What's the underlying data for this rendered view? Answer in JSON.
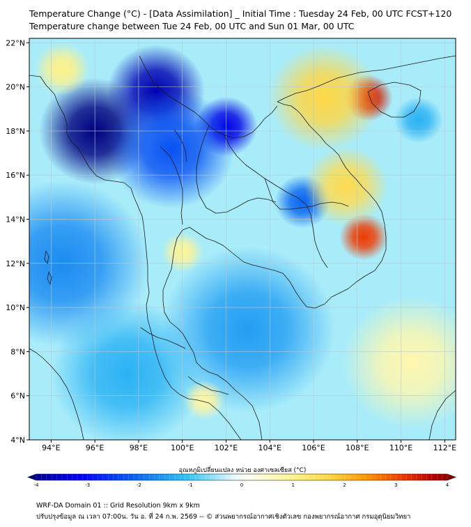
{
  "title": {
    "line1": "Temperature Change (°C) - [Data Assimilation] _ Initial Time : Tuesday 24 Feb, 00 UTC FCST+120",
    "line2": "Temperature change between Tue 24 Feb, 00 UTC and Sun 01 Mar, 00 UTC"
  },
  "map": {
    "lon_range": [
      93,
      112.5
    ],
    "lat_range": [
      4,
      22.2
    ],
    "x_ticks": [
      94,
      96,
      98,
      100,
      102,
      104,
      106,
      108,
      110,
      112
    ],
    "x_tick_labels": [
      "94°E",
      "96°E",
      "98°E",
      "100°E",
      "102°E",
      "104°E",
      "106°E",
      "108°E",
      "110°E",
      "112°E"
    ],
    "y_ticks": [
      4,
      6,
      8,
      10,
      12,
      14,
      16,
      18,
      20,
      22
    ],
    "y_tick_labels": [
      "4°N",
      "6°N",
      "8°N",
      "10°N",
      "12°N",
      "14°N",
      "16°N",
      "18°N",
      "20°N",
      "22°N"
    ],
    "field_blobs": [
      {
        "lon": 96.0,
        "lat": 18.0,
        "value": -4.0,
        "spread": 1.6
      },
      {
        "lon": 98.8,
        "lat": 19.8,
        "value": -3.6,
        "spread": 1.4
      },
      {
        "lon": 102.0,
        "lat": 18.2,
        "value": -3.2,
        "spread": 0.9
      },
      {
        "lon": 99.5,
        "lat": 17.2,
        "value": -2.2,
        "spread": 1.8
      },
      {
        "lon": 105.5,
        "lat": 14.8,
        "value": -2.0,
        "spread": 0.8
      },
      {
        "lon": 94.5,
        "lat": 12.0,
        "value": -1.6,
        "spread": 2.5
      },
      {
        "lon": 103.0,
        "lat": 9.0,
        "value": -1.4,
        "spread": 2.5
      },
      {
        "lon": 97.5,
        "lat": 7.0,
        "value": -1.2,
        "spread": 2.2
      },
      {
        "lon": 110.8,
        "lat": 18.5,
        "value": -1.2,
        "spread": 0.7
      },
      {
        "lon": 108.5,
        "lat": 19.5,
        "value": 3.3,
        "spread": 0.7
      },
      {
        "lon": 108.3,
        "lat": 13.2,
        "value": 3.0,
        "spread": 0.7
      },
      {
        "lon": 106.5,
        "lat": 19.5,
        "value": 1.6,
        "spread": 1.6
      },
      {
        "lon": 107.5,
        "lat": 15.5,
        "value": 1.5,
        "spread": 1.2
      },
      {
        "lon": 110.5,
        "lat": 7.5,
        "value": 0.7,
        "spread": 2.0
      },
      {
        "lon": 100.0,
        "lat": 12.5,
        "value": 0.9,
        "spread": 0.6
      },
      {
        "lon": 101.0,
        "lat": 5.8,
        "value": 0.8,
        "spread": 0.6
      },
      {
        "lon": 94.5,
        "lat": 20.8,
        "value": 1.0,
        "spread": 0.8
      }
    ]
  },
  "colorbar": {
    "label": "อุณหภูมิเปลี่ยนแปลง หน่วย องศาเซลเซียส (°C)",
    "min": -4,
    "max": 4,
    "ticks": [
      -4,
      -3,
      -2,
      -1,
      0,
      1,
      2,
      3,
      4
    ],
    "tick_labels": [
      "-4",
      "-3",
      "-2",
      "-1",
      "0",
      "1",
      "2",
      "3",
      "4"
    ],
    "colors": [
      "#00007f",
      "#0000ff",
      "#0a64f0",
      "#33c5f5",
      "#e8f8ff",
      "#fffff0",
      "#fff28a",
      "#ffd23a",
      "#ff9a00",
      "#ef3a00",
      "#b40000",
      "#7f0000"
    ],
    "color_stops": [
      -4,
      -3,
      -2,
      -1,
      -0.15,
      0.15,
      1,
      1.7,
      2.3,
      3,
      3.6,
      4
    ]
  },
  "footer": {
    "line1": "WRF-DA Domain 01 :: Grid Resolution 9km x 9km",
    "line2": "ปรับปรุงข้อมูล ณ เวลา 07:00น. วัน อ. ที่ 24 ก.พ. 2569 -- © ส่วนพยากรณ์อากาศเชิงตัวเลข กองพยากรณ์อากาศ กรมอุตุนิยมวิทยา"
  }
}
